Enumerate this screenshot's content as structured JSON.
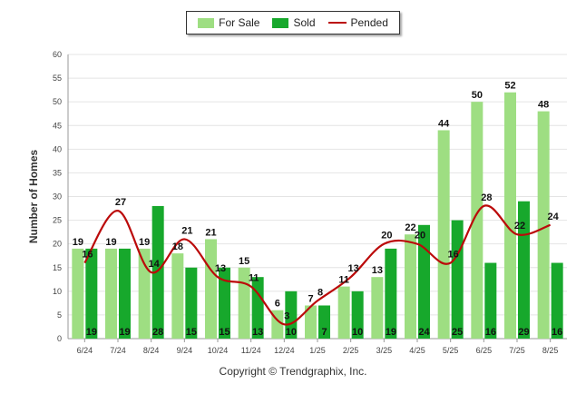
{
  "legend": {
    "for_sale": "For Sale",
    "sold": "Sold",
    "pended": "Pended"
  },
  "footer": "Copyright © Trendgraphix, Inc.",
  "colors": {
    "for_sale": "#9ede82",
    "sold": "#17a82c",
    "pended": "#bb0a0a"
  },
  "chart_data": {
    "type": "bar",
    "ylabel": "Number of Homes",
    "xlabel": "",
    "ylim": [
      0,
      60
    ],
    "yticks": [
      0,
      5,
      10,
      15,
      20,
      25,
      30,
      35,
      40,
      45,
      50,
      55,
      60
    ],
    "grid": true,
    "legend_position": "top-center",
    "categories": [
      "6/24",
      "7/24",
      "8/24",
      "9/24",
      "10/24",
      "11/24",
      "12/24",
      "1/25",
      "2/25",
      "3/25",
      "4/25",
      "5/25",
      "6/25",
      "7/25",
      "8/25"
    ],
    "series": [
      {
        "name": "For Sale",
        "type": "bar",
        "values": [
          19,
          19,
          19,
          18,
          21,
          15,
          6,
          7,
          11,
          13,
          22,
          44,
          50,
          52,
          48
        ]
      },
      {
        "name": "Sold",
        "type": "bar",
        "values": [
          19,
          19,
          28,
          15,
          15,
          13,
          10,
          7,
          10,
          19,
          24,
          25,
          16,
          29,
          16
        ]
      },
      {
        "name": "Pended",
        "type": "line",
        "values": [
          16,
          27,
          14,
          21,
          13,
          11,
          3,
          8,
          13,
          20,
          20,
          16,
          28,
          22,
          24
        ]
      }
    ]
  }
}
